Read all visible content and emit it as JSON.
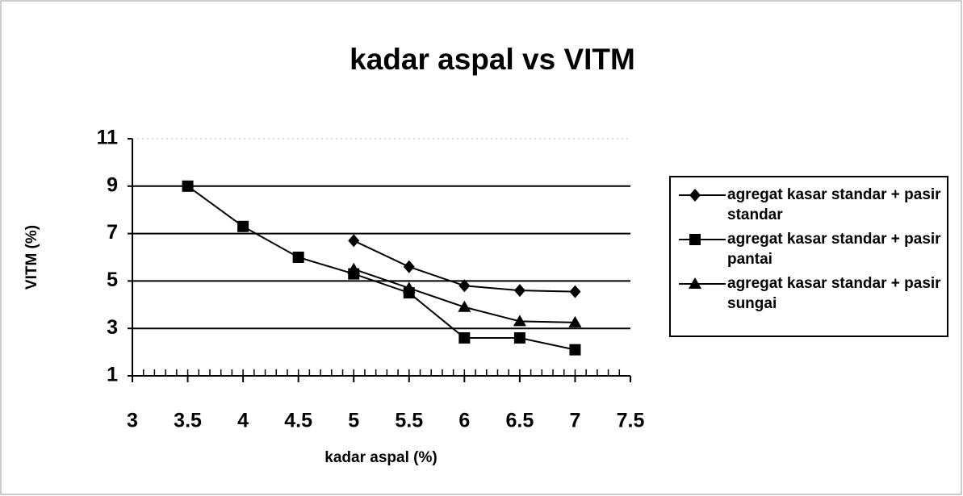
{
  "chart_data": {
    "type": "line",
    "title": "kadar aspal vs VITM",
    "x_label": "kadar aspal (%)",
    "y_label": "VITM (%)",
    "xlim": [
      3,
      7.5
    ],
    "xticks": [
      3,
      3.5,
      4,
      4.5,
      5,
      5.5,
      6,
      6.5,
      7,
      7.5
    ],
    "ylim": [
      1,
      11
    ],
    "yticks": [
      1,
      3,
      5,
      7,
      9,
      11
    ],
    "grid": true,
    "legend": "right",
    "color": "#000000",
    "series": [
      {
        "name": "agregat kasar standar + pasir standar",
        "marker": "diamond",
        "color": "#000000",
        "x": [
          5,
          5.5,
          6,
          6.5,
          7
        ],
        "values": [
          6.7,
          5.6,
          4.8,
          4.6,
          4.55
        ]
      },
      {
        "name": "agregat kasar standar + pasir pantai",
        "marker": "square",
        "color": "#000000",
        "x": [
          3.5,
          4,
          4.5,
          5,
          5.5,
          6,
          6.5,
          7
        ],
        "values": [
          9,
          7.3,
          6,
          5.3,
          4.5,
          2.6,
          2.6,
          2.1
        ]
      },
      {
        "name": "agregat kasar standar + pasir sungai",
        "marker": "triangle",
        "color": "#000000",
        "x": [
          5,
          5.5,
          6,
          6.5,
          7
        ],
        "values": [
          5.5,
          4.7,
          3.9,
          3.3,
          3.25
        ]
      }
    ]
  }
}
